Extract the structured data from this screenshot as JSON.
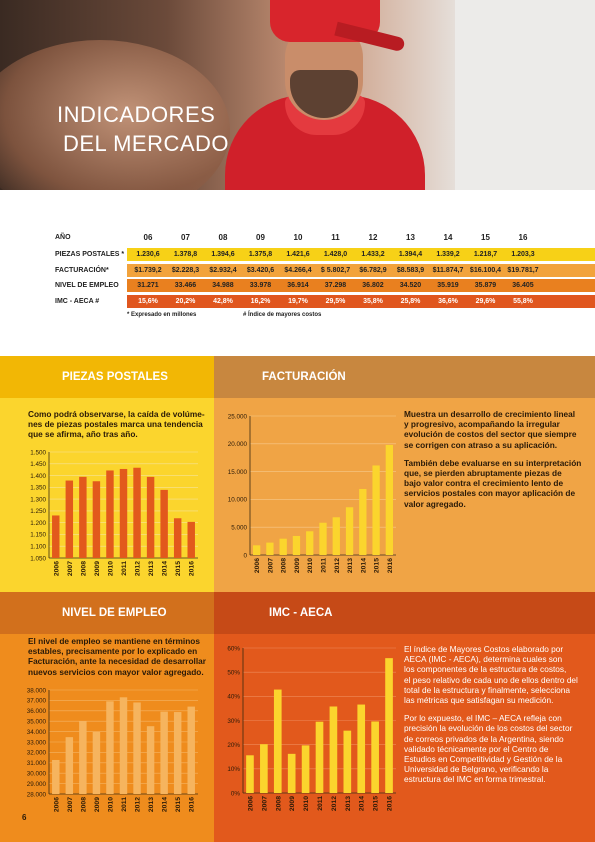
{
  "page_title": [
    "INDICADORES",
    "DEL MERCADO"
  ],
  "page_number": "6",
  "table": {
    "header_label": "AÑO",
    "years": [
      "06",
      "07",
      "08",
      "09",
      "10",
      "11",
      "12",
      "13",
      "14",
      "15",
      "16"
    ],
    "rows": [
      {
        "label": "PIEZAS POSTALES *",
        "values": [
          "1.230,6",
          "1.378,8",
          "1.394,6",
          "1.375,8",
          "1.421,6",
          "1.428,0",
          "1.433,2",
          "1.394,4",
          "1.339,2",
          "1.218,7",
          "1.203,3"
        ],
        "color": "#f7d117",
        "text_color": "#222222"
      },
      {
        "label": "FACTURACIÓN*",
        "values": [
          "$1.739,2",
          "$2.228,3",
          "$2.932,4",
          "$3.420,6",
          "$4.266,4",
          "$ 5.802,7",
          "$6.782,9",
          "$8.583,9",
          "$11.874,7",
          "$16.100,4",
          "$19.781,7"
        ],
        "color": "#f2a33c",
        "text_color": "#222222"
      },
      {
        "label": "NIVEL DE EMPLEO",
        "values": [
          "31.271",
          "33.466",
          "34.988",
          "33.978",
          "36.914",
          "37.298",
          "36.802",
          "34.520",
          "35.919",
          "35.879",
          "36.405"
        ],
        "color": "#e9801f",
        "text_color": "#222222"
      },
      {
        "label": "IMC - AECA #",
        "values": [
          "15,6%",
          "20,2%",
          "42,8%",
          "16,2%",
          "19,7%",
          "29,5%",
          "35,8%",
          "25,8%",
          "36,6%",
          "29,6%",
          "55,8%"
        ],
        "color": "#e0561e",
        "text_color": "#ffffff"
      }
    ],
    "notes": [
      "* Expresado en millones",
      "# Índice de mayores costos"
    ]
  },
  "sections": {
    "piezas": {
      "title": "PIEZAS POSTALES",
      "text": "Como podrá observarse, la caída de volúmenes de piezas postales marca una tendencia que se afirma, año tras año.",
      "lines": [
        "Como podrá observarse, la caída de volúme-",
        "nes de piezas postales marca una tendencia",
        "que se afirma, año tras año."
      ]
    },
    "facturacion": {
      "title": "FACTURACIÓN",
      "lines1": [
        "Muestra un desarrollo de crecimiento lineal",
        "y progresivo, acompañando la irregular",
        "evolución de costos del sector que siempre",
        "se corrigen con atraso a su aplicación."
      ],
      "lines2": [
        "También debe evaluarse en su interpretación",
        "que, se pierden abruptamente piezas de",
        "bajo valor contra el crecimiento lento de",
        "servicios postales con mayor aplicación de",
        "valor agregado."
      ]
    },
    "empleo": {
      "title": "NIVEL DE EMPLEO",
      "lines": [
        "El nivel de empleo se mantiene en términos",
        "estables, precisamente por lo explicado en",
        "Facturación, ante la necesidad de desarrollar",
        "nuevos servicios con mayor valor agregado."
      ]
    },
    "imc": {
      "title": "IMC - AECA",
      "lines1": [
        "El índice de Mayores Costos elaborado por",
        "AECA (IMC - AECA), determina cuales son",
        "los componentes de la estructura de costos,",
        "el peso relativo de cada uno de ellos dentro del",
        "total de la estructura y finalmente, selecciona",
        "las métricas que satisfagan su medición."
      ],
      "lines2": [
        "Por lo expuesto, el IMC – AECA refleja con",
        "precisión la evolución de los costos del sector",
        "de correos privados de la Argentina, siendo",
        "validado técnicamente por el Centro de",
        "Estudios en Competitividad y Gestión de la",
        "Universidad de Belgrano, verificando la",
        "estructura del IMC en forma trimestral."
      ]
    }
  },
  "colors": {
    "yellow_head": "#f2b705",
    "yellow_body": "#fbd52d",
    "orange_head": "#c8873f",
    "orange_body": "#f0a445",
    "empleo_head": "#d2701c",
    "empleo_body": "#ef8c1d",
    "imc_head": "#c64a17",
    "imc_body": "#e2591c"
  },
  "chart_data": [
    {
      "type": "bar",
      "name_ref": "piezas",
      "categories": [
        "2006",
        "2007",
        "2008",
        "2009",
        "2010",
        "2011",
        "2012",
        "2013",
        "2014",
        "2015",
        "2016"
      ],
      "values": [
        1230.6,
        1378.8,
        1394.6,
        1375.8,
        1421.6,
        1428.0,
        1433.2,
        1394.4,
        1339.2,
        1218.7,
        1203.3
      ],
      "ylim": [
        1050,
        1500
      ],
      "yticks": [
        "1.050",
        "1.100",
        "1.150",
        "1.200",
        "1.250",
        "1.300",
        "1.350",
        "1.400",
        "1.450",
        "1.500"
      ],
      "bar_color": "#e2591c",
      "grid": true
    },
    {
      "type": "bar",
      "name_ref": "facturacion",
      "categories": [
        "2006",
        "2007",
        "2008",
        "2009",
        "2010",
        "2011",
        "2012",
        "2013",
        "2014",
        "2015",
        "2016"
      ],
      "values": [
        1739.2,
        2228.3,
        2932.4,
        3420.6,
        4266.4,
        5802.7,
        6782.9,
        8583.9,
        11874.7,
        16100.4,
        19781.7
      ],
      "ylim": [
        0,
        25000
      ],
      "yticks": [
        "0",
        "5.000",
        "10.000",
        "15.000",
        "20.000",
        "25.000"
      ],
      "bar_color": "#fbd52d",
      "grid": true
    },
    {
      "type": "bar",
      "name_ref": "empleo",
      "categories": [
        "2006",
        "2007",
        "2008",
        "2009",
        "2010",
        "2011",
        "2012",
        "2013",
        "2014",
        "2015",
        "2016"
      ],
      "values": [
        31271,
        33466,
        34988,
        33978,
        36914,
        37298,
        36802,
        34520,
        35919,
        35879,
        36405
      ],
      "ylim": [
        28000,
        38000
      ],
      "yticks": [
        "28.000",
        "29.000",
        "30.000",
        "31.000",
        "32.000",
        "33.000",
        "34.000",
        "35.000",
        "36.000",
        "37.000",
        "38.000"
      ],
      "bar_color": "#f6b45e",
      "grid": true
    },
    {
      "type": "bar",
      "name_ref": "imc",
      "categories": [
        "2006",
        "2007",
        "2008",
        "2009",
        "2010",
        "2011",
        "2012",
        "2013",
        "2014",
        "2015",
        "2016"
      ],
      "values": [
        15.6,
        20.2,
        42.8,
        16.2,
        19.7,
        29.5,
        35.8,
        25.8,
        36.6,
        29.6,
        55.8
      ],
      "ylim": [
        0,
        60
      ],
      "yticks": [
        "0%",
        "10%",
        "20%",
        "30%",
        "40%",
        "50%",
        "60%"
      ],
      "bar_color": "#fbd52d",
      "grid": true
    }
  ]
}
